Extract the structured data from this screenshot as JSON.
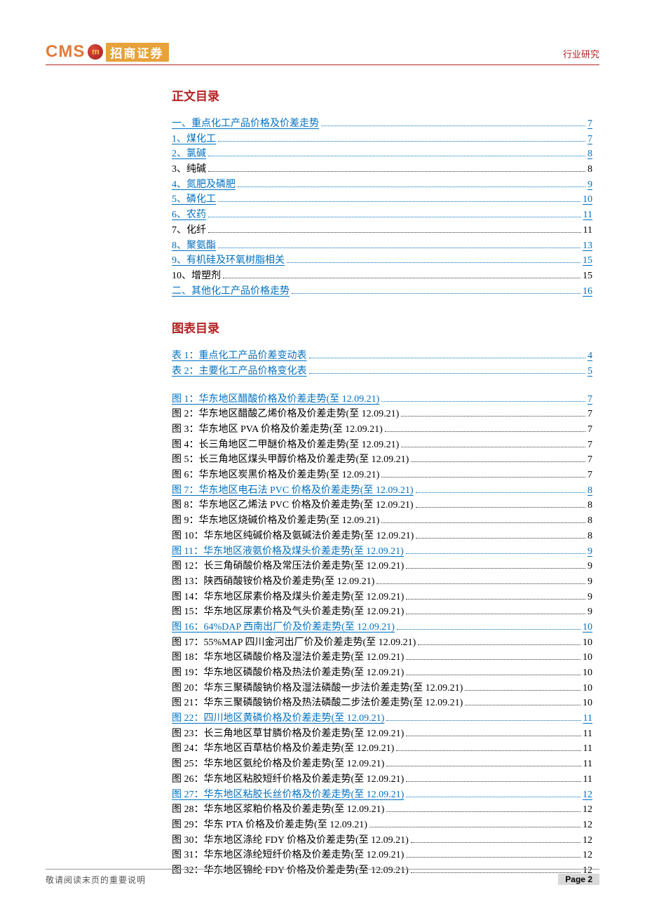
{
  "header": {
    "logo_cms": "CMS",
    "logo_name": "招商证券",
    "doc_type": "行业研究"
  },
  "sections": {
    "text_toc_title": "正文目录",
    "chart_toc_title": "图表目录"
  },
  "text_toc": [
    {
      "label": "一、重点化工产品价格及价差走势",
      "page": "7",
      "link": true
    },
    {
      "label": "1、煤化工",
      "page": "7",
      "link": true
    },
    {
      "label": "2、氯碱",
      "page": "8",
      "link": true
    },
    {
      "label": "3、纯碱",
      "page": "8",
      "link": false
    },
    {
      "label": "4、氮肥及磷肥",
      "page": "9",
      "link": true
    },
    {
      "label": "5、磷化工",
      "page": "10",
      "link": true
    },
    {
      "label": "6、农药",
      "page": "11",
      "link": true
    },
    {
      "label": "7、化纤",
      "page": "11",
      "link": false
    },
    {
      "label": "8、聚氨酯",
      "page": "13",
      "link": true
    },
    {
      "label": "9、有机硅及环氧树脂相关",
      "page": "15",
      "link": true
    },
    {
      "label": "10、增塑剂",
      "page": "15",
      "link": false
    },
    {
      "label": "二、其他化工产品价格走势",
      "page": "16",
      "link": true
    }
  ],
  "table_toc": [
    {
      "label": "表 1：重点化工产品价差变动表",
      "page": "4",
      "link": true
    },
    {
      "label": "表 2：主要化工产品价格变化表",
      "page": "5",
      "link": true
    }
  ],
  "figure_toc": [
    {
      "label": "图 1：华东地区醋酸价格及价差走势(至 12.09.21)",
      "page": "7",
      "link": true
    },
    {
      "label": "图 2：华东地区醋酸乙烯价格及价差走势(至 12.09.21)",
      "page": "7",
      "link": false
    },
    {
      "label": "图 3：华东地区 PVA 价格及价差走势(至 12.09.21)",
      "page": "7",
      "link": false
    },
    {
      "label": "图 4：长三角地区二甲醚价格及价差走势(至 12.09.21)",
      "page": "7",
      "link": false
    },
    {
      "label": "图 5：长三角地区煤头甲醇价格及价差走势(至 12.09.21)",
      "page": "7",
      "link": false
    },
    {
      "label": "图 6：华东地区炭黑价格及价差走势(至 12.09.21)",
      "page": "7",
      "link": false
    },
    {
      "label": "图 7：华东地区电石法 PVC 价格及价差走势(至 12.09.21)",
      "page": "8",
      "link": true
    },
    {
      "label": "图 8：华东地区乙烯法 PVC 价格及价差走势(至 12.09.21)",
      "page": "8",
      "link": false
    },
    {
      "label": "图 9：华东地区烧碱价格及价差走势(至 12.09.21)",
      "page": "8",
      "link": false
    },
    {
      "label": "图 10：华东地区纯碱价格及氨碱法价差走势(至 12.09.21)",
      "page": "8",
      "link": false
    },
    {
      "label": "图 11：华东地区液氨价格及煤头价差走势(至 12.09.21)",
      "page": "9",
      "link": true
    },
    {
      "label": "图 12：长三角硝酸价格及常压法价差走势(至 12.09.21)",
      "page": "9",
      "link": false
    },
    {
      "label": "图 13：陕西硝酸铵价格及价差走势(至 12.09.21)",
      "page": "9",
      "link": false
    },
    {
      "label": "图 14：华东地区尿素价格及煤头价差走势(至 12.09.21)",
      "page": "9",
      "link": false
    },
    {
      "label": "图 15：华东地区尿素价格及气头价差走势(至 12.09.21)",
      "page": "9",
      "link": false
    },
    {
      "label": "图 16：64%DAP 西南出厂价及价差走势(至 12.09.21)",
      "page": "10",
      "link": true
    },
    {
      "label": "图 17：55%MAP 四川金河出厂价及价差走势(至 12.09.21)",
      "page": "10",
      "link": false
    },
    {
      "label": "图 18：华东地区磷酸价格及湿法价差走势(至 12.09.21)",
      "page": "10",
      "link": false
    },
    {
      "label": "图 19：华东地区磷酸价格及热法价差走势(至 12.09.21)",
      "page": "10",
      "link": false
    },
    {
      "label": "图 20：华东三聚磷酸钠价格及湿法磷酸一步法价差走势(至 12.09.21)",
      "page": "10",
      "link": false
    },
    {
      "label": "图 21：华东三聚磷酸钠价格及热法磷酸二步法价差走势(至 12.09.21)",
      "page": "10",
      "link": false
    },
    {
      "label": "图 22：四川地区黄磷价格及价差走势(至 12.09.21)",
      "page": "11",
      "link": true
    },
    {
      "label": "图 23：长三角地区草甘膦价格及价差走势(至 12.09.21)",
      "page": "11",
      "link": false
    },
    {
      "label": "图 24：华东地区百草枯价格及价差走势(至 12.09.21)",
      "page": "11",
      "link": false
    },
    {
      "label": "图 25：华东地区氨纶价格及价差走势(至 12.09.21)",
      "page": "11",
      "link": false
    },
    {
      "label": "图 26：华东地区粘胶短纤价格及价差走势(至 12.09.21)",
      "page": "11",
      "link": false
    },
    {
      "label": "图 27：华东地区粘胶长丝价格及价差走势(至 12.09.21)",
      "page": "12",
      "link": true
    },
    {
      "label": "图 28：华东地区浆粕价格及价差走势(至 12.09.21)",
      "page": "12",
      "link": false
    },
    {
      "label": "图 29：华东 PTA 价格及价差走势(至 12.09.21)",
      "page": "12",
      "link": false
    },
    {
      "label": "图 30：华东地区涤纶 FDY 价格及价差走势(至 12.09.21)",
      "page": "12",
      "link": false
    },
    {
      "label": "图 31：华东地区涤纶短纤价格及价差走势(至 12.09.21)",
      "page": "12",
      "link": false
    },
    {
      "label": "图 32：华东地区锦纶 FDY 价格及价差走势(至 12.09.21)",
      "page": "12",
      "link": false
    }
  ],
  "footer": {
    "note": "敬请阅读末页的重要说明",
    "page": "Page 2"
  },
  "colors": {
    "accent_red": "#b22222",
    "link_blue": "#0070c0",
    "logo_orange": "#e07b3a",
    "logo_name_bg": "#e8a23a",
    "page_badge_bg": "#d9d9d9"
  }
}
